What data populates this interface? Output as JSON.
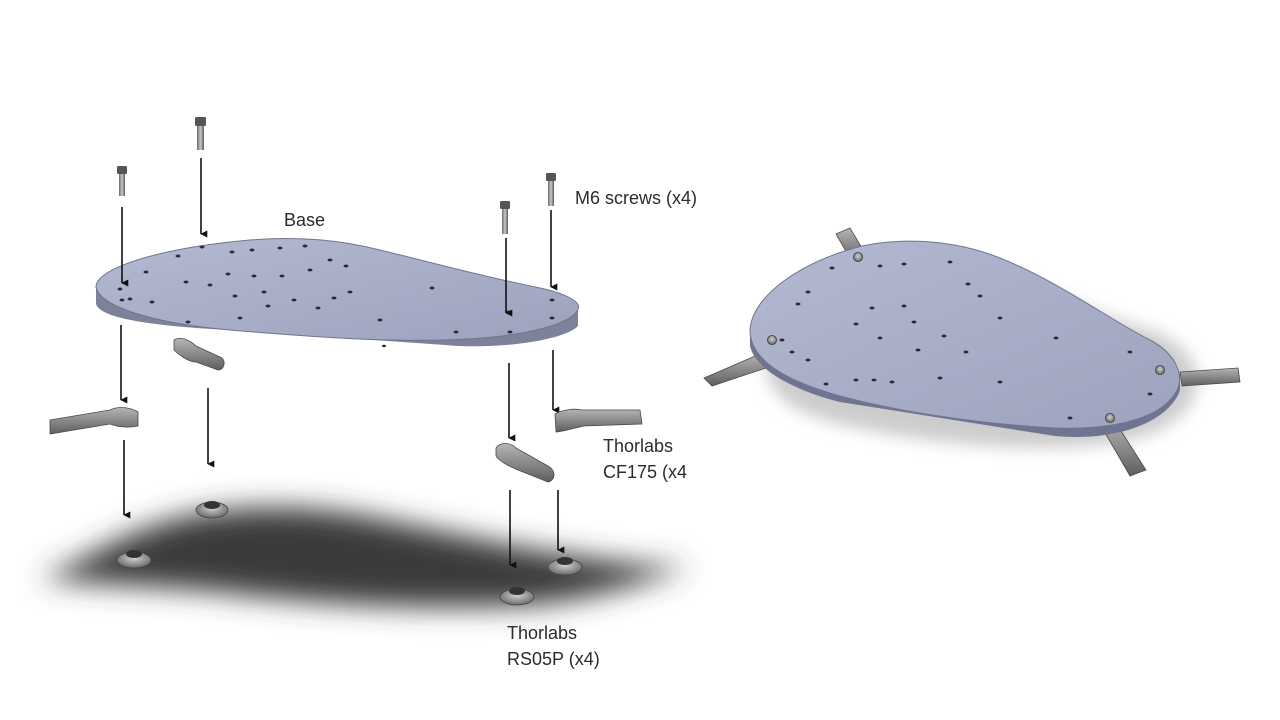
{
  "labels": {
    "base": "Base",
    "screws": "M6 screws (x4)",
    "clamp_line1": "Thorlabs",
    "clamp_line2": "CF175 (x4",
    "post_line1": "Thorlabs",
    "post_line2": "RS05P (x4)"
  },
  "colors": {
    "plate_top": "#a9aec7",
    "plate_edge": "#7d8299",
    "clamp": "#8a8a8a",
    "arrow": "#111111",
    "shadow": "#3a3a3a"
  }
}
